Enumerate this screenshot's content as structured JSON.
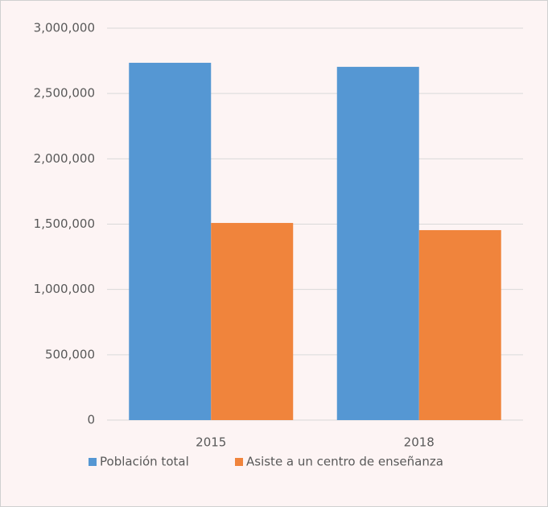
{
  "chart_data": {
    "type": "bar",
    "categories": [
      "2015",
      "2018"
    ],
    "series": [
      {
        "name": "Población total",
        "color": "#5597d3",
        "values": [
          2735000,
          2704000
        ]
      },
      {
        "name": "Asiste a un centro de enseñanza",
        "color": "#f0843c",
        "values": [
          1509000,
          1454000
        ]
      }
    ],
    "ylim": [
      0,
      3000000
    ],
    "yticks": [
      0,
      {
        "value": 500000,
        "label": "500,000"
      },
      {
        "value": 1000000,
        "label": "1,000,000"
      },
      {
        "value": 1500000,
        "label": "1,500,000"
      },
      {
        "value": 2000000,
        "label": "2,000,000"
      },
      {
        "value": 2500000,
        "label": "2,500,000"
      },
      {
        "value": 3000000,
        "label": "3,000,000"
      }
    ],
    "grid": true,
    "legend": "bottom"
  }
}
